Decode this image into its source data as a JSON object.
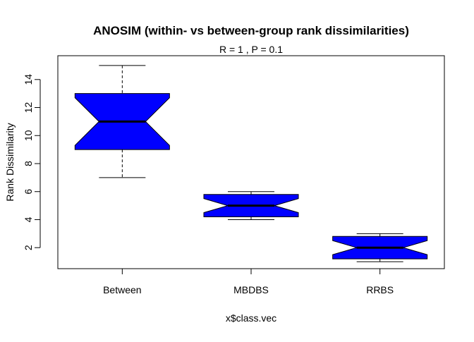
{
  "chart_data": {
    "type": "boxplot",
    "title": "ANOSIM (within- vs between-group rank dissimilarities)",
    "subtitle": "R =  1 ,  P =  0.1",
    "xlabel": "x$class.vec",
    "ylabel": "Rank Dissimilarity",
    "ylim": [
      0.5,
      15.7
    ],
    "yticks": [
      2,
      4,
      6,
      8,
      10,
      12,
      14
    ],
    "notch": true,
    "box_color": "#0000ff",
    "categories": [
      "Between",
      "MBDBS",
      "RRBS"
    ],
    "boxes": [
      {
        "name": "Between",
        "whisker_low": 7,
        "q1": 9,
        "median": 11,
        "q3": 13,
        "whisker_high": 15,
        "notch_low": 9.3,
        "notch_high": 12.7
      },
      {
        "name": "MBDBS",
        "whisker_low": 4,
        "q1": 4.2,
        "median": 5,
        "q3": 5.8,
        "whisker_high": 6,
        "notch_low": 4.5,
        "notch_high": 5.5
      },
      {
        "name": "RRBS",
        "whisker_low": 1,
        "q1": 1.2,
        "median": 2,
        "q3": 2.8,
        "whisker_high": 3,
        "notch_low": 1.5,
        "notch_high": 2.5
      }
    ]
  }
}
